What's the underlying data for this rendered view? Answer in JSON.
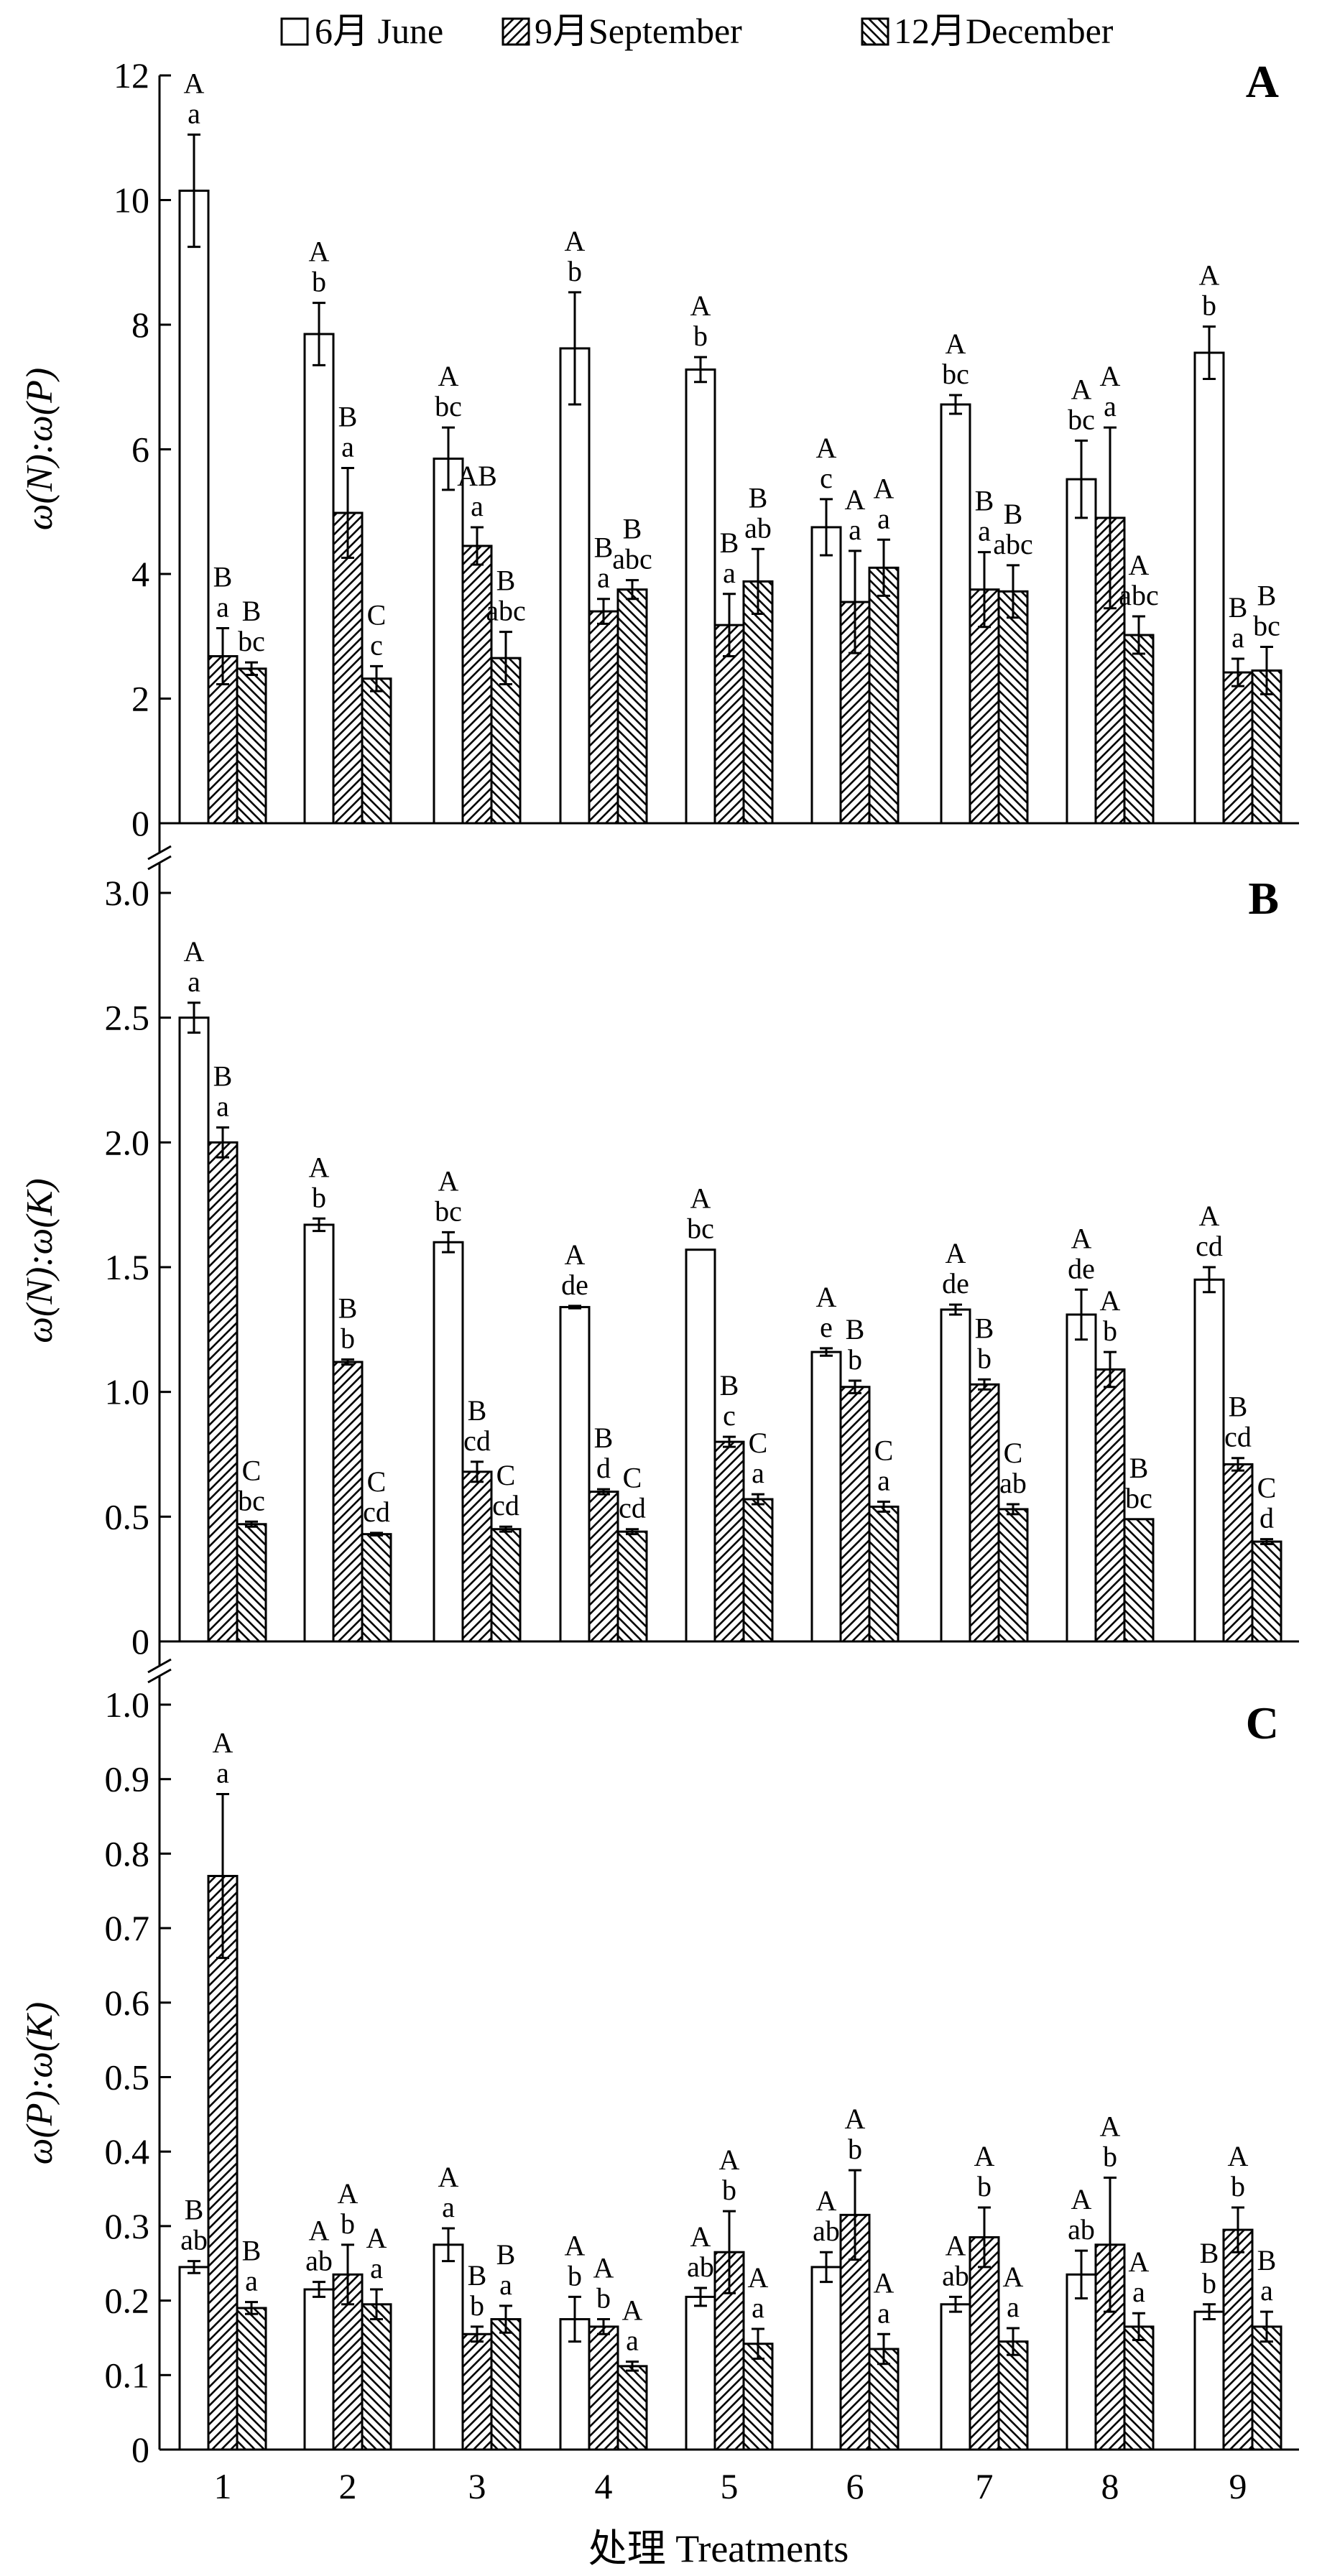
{
  "legend": {
    "items": [
      {
        "label": "6月 June",
        "pattern": "none"
      },
      {
        "label": "9月September",
        "pattern": "hatch-forward"
      },
      {
        "label": "12月December",
        "pattern": "hatch-backward"
      }
    ]
  },
  "xaxis": {
    "label": "处理 Treatments",
    "ticks": [
      "1",
      "2",
      "3",
      "4",
      "5",
      "6",
      "7",
      "8",
      "9"
    ]
  },
  "chart_data": [
    {
      "type": "bar",
      "panel_letter": "A",
      "ylabel": "ω(N):ω(P)",
      "ylim": [
        0,
        12
      ],
      "yticks": [
        "0",
        "2",
        "4",
        "6",
        "8",
        "10",
        "12"
      ],
      "categories": [
        "1",
        "2",
        "3",
        "4",
        "5",
        "6",
        "7",
        "8",
        "9"
      ],
      "series": [
        {
          "name": "6月 June",
          "values": [
            10.15,
            7.85,
            5.85,
            7.62,
            7.28,
            4.75,
            6.72,
            5.52,
            7.55
          ],
          "errors": [
            0.9,
            0.5,
            0.5,
            0.9,
            0.2,
            0.45,
            0.15,
            0.62,
            0.42
          ],
          "labels": [
            [
              "A",
              "a"
            ],
            [
              "A",
              "b"
            ],
            [
              "A",
              "bc"
            ],
            [
              "A",
              "b"
            ],
            [
              "A",
              "b"
            ],
            [
              "A",
              "c"
            ],
            [
              "A",
              "bc"
            ],
            [
              "A",
              "bc"
            ],
            [
              "A",
              "b"
            ]
          ]
        },
        {
          "name": "9月September",
          "values": [
            2.68,
            4.98,
            4.45,
            3.4,
            3.18,
            3.55,
            3.75,
            4.9,
            2.42
          ],
          "errors": [
            0.45,
            0.72,
            0.3,
            0.2,
            0.5,
            0.82,
            0.6,
            1.45,
            0.22
          ],
          "labels": [
            [
              "B",
              "a"
            ],
            [
              "B",
              "a"
            ],
            [
              "AB",
              "a"
            ],
            [
              "B",
              "a"
            ],
            [
              "B",
              "a"
            ],
            [
              "A",
              "a"
            ],
            [
              "B",
              "a"
            ],
            [
              "A",
              "a"
            ],
            [
              "B",
              "a"
            ]
          ]
        },
        {
          "name": "12月December",
          "values": [
            2.48,
            2.32,
            2.65,
            3.75,
            3.88,
            4.1,
            3.72,
            3.02,
            2.45
          ],
          "errors": [
            0.1,
            0.2,
            0.42,
            0.15,
            0.52,
            0.45,
            0.42,
            0.3,
            0.38
          ],
          "labels": [
            [
              "B",
              "bc"
            ],
            [
              "C",
              "c"
            ],
            [
              "B",
              "abc"
            ],
            [
              "B",
              "abc"
            ],
            [
              "B",
              "ab"
            ],
            [
              "A",
              "a"
            ],
            [
              "B",
              "abc"
            ],
            [
              "A",
              "abc"
            ],
            [
              "B",
              "bc"
            ]
          ]
        }
      ]
    },
    {
      "type": "bar",
      "panel_letter": "B",
      "ylabel": "ω(N):ω(K)",
      "ylim": [
        0,
        3.0
      ],
      "yticks": [
        "0",
        "0.5",
        "1.0",
        "1.5",
        "2.0",
        "2.5",
        "3.0"
      ],
      "categories": [
        "1",
        "2",
        "3",
        "4",
        "5",
        "6",
        "7",
        "8",
        "9"
      ],
      "series": [
        {
          "name": "6月 June",
          "values": [
            2.5,
            1.67,
            1.6,
            1.34,
            1.57,
            1.16,
            1.33,
            1.31,
            1.45
          ],
          "errors": [
            0.06,
            0.025,
            0.04,
            0.005,
            0.0,
            0.015,
            0.02,
            0.1,
            0.05
          ],
          "labels": [
            [
              "A",
              "a"
            ],
            [
              "A",
              "b"
            ],
            [
              "A",
              "bc"
            ],
            [
              "A",
              "de"
            ],
            [
              "A",
              "bc"
            ],
            [
              "A",
              "e"
            ],
            [
              "A",
              "de"
            ],
            [
              "A",
              "de"
            ],
            [
              "A",
              "cd"
            ]
          ]
        },
        {
          "name": "9月September",
          "values": [
            2.0,
            1.12,
            0.68,
            0.6,
            0.8,
            1.02,
            1.03,
            1.09,
            0.71
          ],
          "errors": [
            0.06,
            0.01,
            0.04,
            0.01,
            0.02,
            0.025,
            0.02,
            0.07,
            0.025
          ],
          "labels": [
            [
              "B",
              "a"
            ],
            [
              "B",
              "b"
            ],
            [
              "B",
              "cd"
            ],
            [
              "B",
              "d"
            ],
            [
              "B",
              "c"
            ],
            [
              "B",
              "b"
            ],
            [
              "B",
              "b"
            ],
            [
              "A",
              "b"
            ],
            [
              "B",
              "cd"
            ]
          ]
        },
        {
          "name": "12月December",
          "values": [
            0.47,
            0.43,
            0.45,
            0.44,
            0.57,
            0.54,
            0.53,
            0.49,
            0.4
          ],
          "errors": [
            0.01,
            0.005,
            0.01,
            0.01,
            0.02,
            0.02,
            0.02,
            0.0,
            0.01
          ],
          "labels": [
            [
              "C",
              "bc"
            ],
            [
              "C",
              "cd"
            ],
            [
              "C",
              "cd"
            ],
            [
              "C",
              "cd"
            ],
            [
              "C",
              "a"
            ],
            [
              "C",
              "a"
            ],
            [
              "C",
              "ab"
            ],
            [
              "B",
              "bc"
            ],
            [
              "C",
              "d"
            ]
          ]
        }
      ]
    },
    {
      "type": "bar",
      "panel_letter": "C",
      "ylabel": "ω(P):ω(K)",
      "ylim": [
        0,
        1.0
      ],
      "yticks": [
        "0",
        "0.1",
        "0.2",
        "0.3",
        "0.4",
        "0.5",
        "0.6",
        "0.7",
        "0.8",
        "0.9",
        "1.0"
      ],
      "categories": [
        "1",
        "2",
        "3",
        "4",
        "5",
        "6",
        "7",
        "8",
        "9"
      ],
      "series": [
        {
          "name": "6月 June",
          "values": [
            0.245,
            0.215,
            0.275,
            0.175,
            0.205,
            0.245,
            0.195,
            0.235,
            0.185
          ],
          "errors": [
            0.008,
            0.01,
            0.022,
            0.03,
            0.012,
            0.02,
            0.01,
            0.032,
            0.01
          ],
          "labels": [
            [
              "B",
              "ab"
            ],
            [
              "A",
              "ab"
            ],
            [
              "A",
              "a"
            ],
            [
              "A",
              "b"
            ],
            [
              "A",
              "ab"
            ],
            [
              "A",
              "ab"
            ],
            [
              "A",
              "ab"
            ],
            [
              "A",
              "ab"
            ],
            [
              "B",
              "b"
            ]
          ]
        },
        {
          "name": "9月September",
          "values": [
            0.77,
            0.235,
            0.155,
            0.165,
            0.265,
            0.315,
            0.285,
            0.275,
            0.295
          ],
          "errors": [
            0.11,
            0.04,
            0.01,
            0.01,
            0.055,
            0.06,
            0.04,
            0.09,
            0.03
          ],
          "labels": [
            [
              "A",
              "a"
            ],
            [
              "A",
              "b"
            ],
            [
              "B",
              "b"
            ],
            [
              "A",
              "b"
            ],
            [
              "A",
              "b"
            ],
            [
              "A",
              "b"
            ],
            [
              "A",
              "b"
            ],
            [
              "A",
              "b"
            ],
            [
              "A",
              "b"
            ]
          ]
        },
        {
          "name": "12月December",
          "values": [
            0.19,
            0.195,
            0.175,
            0.112,
            0.142,
            0.135,
            0.145,
            0.165,
            0.165
          ],
          "errors": [
            0.008,
            0.02,
            0.018,
            0.006,
            0.02,
            0.02,
            0.018,
            0.018,
            0.02
          ],
          "labels": [
            [
              "B",
              "a"
            ],
            [
              "A",
              "a"
            ],
            [
              "B",
              "a"
            ],
            [
              "A",
              "a"
            ],
            [
              "A",
              "a"
            ],
            [
              "A",
              "a"
            ],
            [
              "A",
              "a"
            ],
            [
              "A",
              "a"
            ],
            [
              "B",
              "a"
            ]
          ]
        }
      ]
    }
  ]
}
